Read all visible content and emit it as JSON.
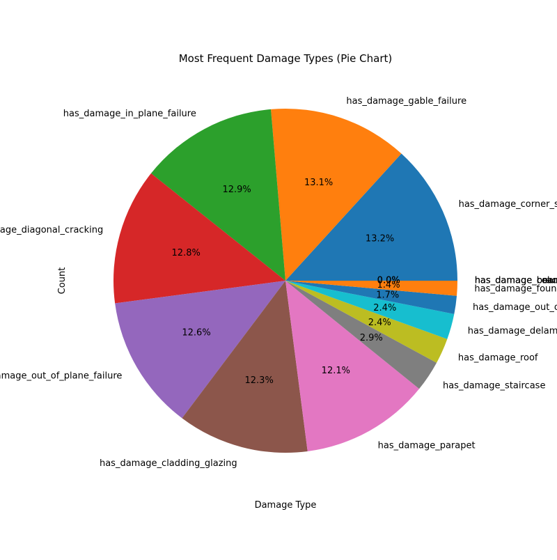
{
  "chart_data": {
    "type": "pie",
    "title": "Most Frequent Damage Types (Pie Chart)",
    "xlabel": "Damage Type",
    "ylabel": "Count",
    "start_angle": "0 deg (3 o'clock), counter-clockwise",
    "slices": [
      {
        "label": "has_damage_corner_separation",
        "percent": 13.2,
        "pct_label": "13.2%",
        "color": "#1f77b4"
      },
      {
        "label": "has_damage_gable_failure",
        "percent": 13.1,
        "pct_label": "13.1%",
        "color": "#ff7f0e"
      },
      {
        "label": "has_damage_in_plane_failure",
        "percent": 12.9,
        "pct_label": "12.9%",
        "color": "#2ca02c"
      },
      {
        "label": "has_damage_diagonal_cracking",
        "percent": 12.8,
        "pct_label": "12.8%",
        "color": "#d62728"
      },
      {
        "label": "has_damage_out_of_plane_failure",
        "percent": 12.6,
        "pct_label": "12.6%",
        "color": "#9467bd"
      },
      {
        "label": "has_damage_cladding_glazing",
        "percent": 12.3,
        "pct_label": "12.3%",
        "color": "#8c564b"
      },
      {
        "label": "has_damage_parapet",
        "percent": 12.1,
        "pct_label": "12.1%",
        "color": "#e377c2"
      },
      {
        "label": "has_damage_staircase",
        "percent": 2.9,
        "pct_label": "2.9%",
        "color": "#7f7f7f"
      },
      {
        "label": "has_damage_roof",
        "percent": 2.4,
        "pct_label": "2.4%",
        "color": "#bcbd22"
      },
      {
        "label": "has_damage_delamination",
        "percent": 2.4,
        "pct_label": "2.4%",
        "color": "#17becf"
      },
      {
        "label": "has_damage_out_of_plane_walls",
        "percent": 1.7,
        "pct_label": "1.7%",
        "color": "#1f77b4"
      },
      {
        "label": "has_damage_foundation",
        "percent": 1.4,
        "pct_label": "1.4%",
        "color": "#ff7f0e"
      },
      {
        "label": "has_damage_beam",
        "percent": 0.0,
        "pct_label": "0.0%",
        "color": "#2ca02c"
      },
      {
        "label": "has_damage_column",
        "percent": 0.0,
        "pct_label": "0.0%",
        "color": "#d62728"
      },
      {
        "label": "has_damage_bracing",
        "percent": 0.0,
        "pct_label": "0.0%",
        "color": "#9467bd"
      }
    ]
  }
}
